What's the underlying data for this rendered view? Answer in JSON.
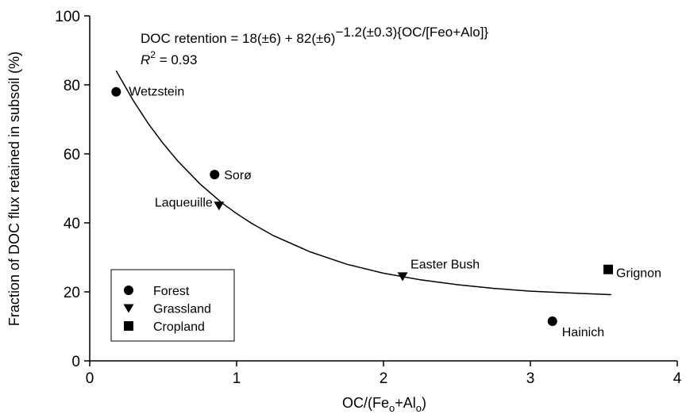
{
  "chart_data": {
    "type": "scatter",
    "x_label": [
      "OC/(Fe",
      "o",
      "+Al",
      "o",
      ")"
    ],
    "y_label": "Fraction of DOC flux retained in subsoil (%)",
    "equation": [
      "DOC retention = 18(±6) + 82(±6)",
      "−1.2(±0.3){OC/[Feo+Alo]}"
    ],
    "r_squared": [
      "R",
      "2",
      " = 0.93"
    ],
    "xlim": [
      0,
      4
    ],
    "xticks": [
      0,
      1,
      2,
      3,
      4
    ],
    "ylim": [
      0,
      100
    ],
    "yticks": [
      0,
      20,
      40,
      60,
      80,
      100
    ],
    "legend_location": "lower left",
    "series": [
      {
        "name": "Forest",
        "color": "#000000",
        "marker": "circle",
        "x": [
          0.18,
          0.85,
          3.15
        ],
        "values": [
          78,
          54,
          11.5
        ],
        "labels": [
          "Wetzstein",
          "Sorø",
          "Hainich"
        ]
      },
      {
        "name": "Grassland",
        "color": "#000000",
        "marker": "triangle-down",
        "x": [
          0.88,
          2.13
        ],
        "values": [
          45,
          24.5
        ],
        "labels": [
          "Laqueuille",
          "Easter Bush"
        ]
      },
      {
        "name": "Cropland",
        "color": "#000000",
        "marker": "square",
        "x": [
          3.53
        ],
        "values": [
          26.5
        ],
        "labels": [
          "Grignon"
        ]
      }
    ],
    "fit_curve": {
      "color": "#000000",
      "x": [
        0.18,
        0.3,
        0.4,
        0.5,
        0.6,
        0.75,
        0.9,
        1.0,
        1.1,
        1.25,
        1.5,
        1.75,
        2.0,
        2.25,
        2.5,
        2.75,
        3.0,
        3.25,
        3.55
      ],
      "values": [
        84.1,
        75.2,
        68.7,
        63.0,
        57.9,
        51.3,
        45.8,
        42.7,
        39.9,
        36.3,
        31.6,
        28.0,
        25.4,
        23.5,
        22.1,
        21.0,
        20.2,
        19.7,
        19.2
      ]
    }
  }
}
